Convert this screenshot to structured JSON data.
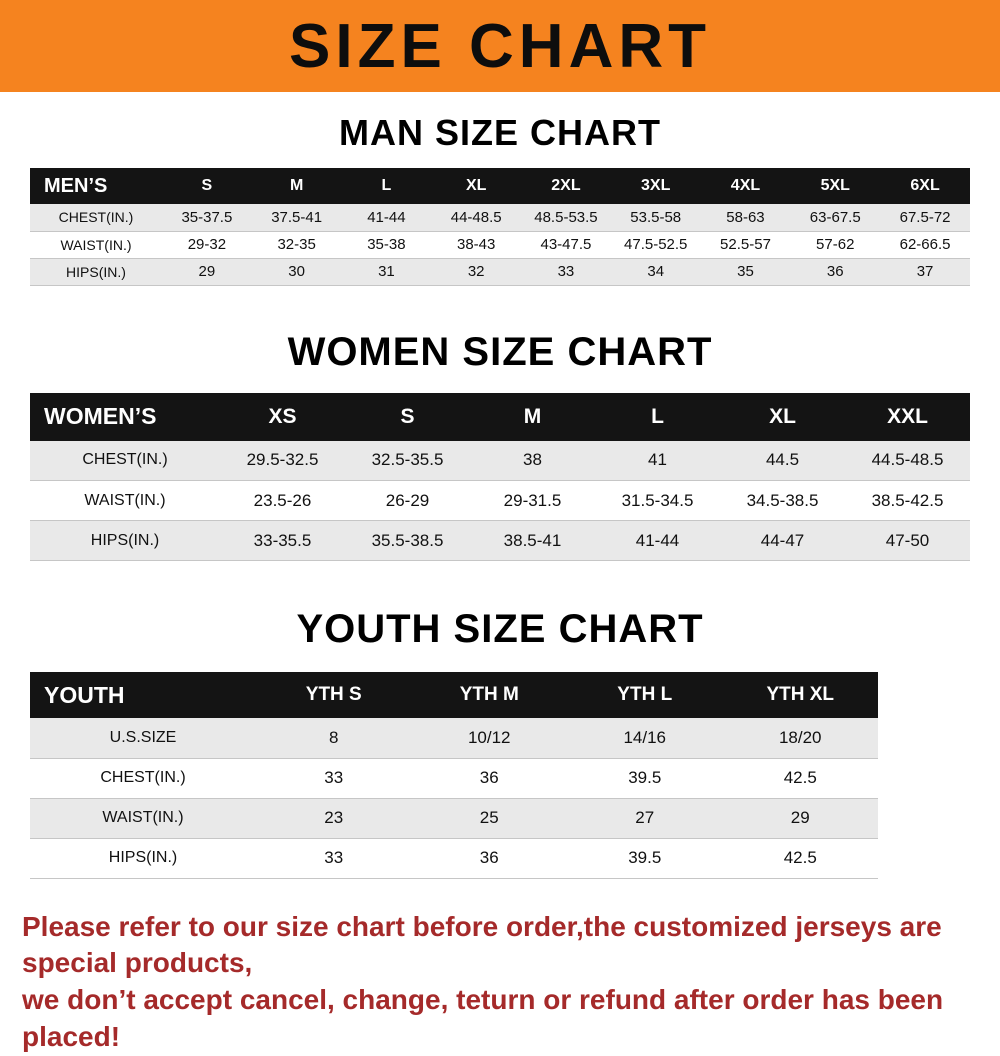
{
  "banner": {
    "title": "SIZE CHART",
    "bg_color": "#F5831F",
    "text_color": "#0d0d0d"
  },
  "sections": [
    {
      "heading": "MAN SIZE CHART"
    },
    {
      "heading": "WOMEN SIZE CHART"
    },
    {
      "heading": "YOUTH SIZE CHART"
    }
  ],
  "tables": {
    "men": {
      "header": [
        "MEN’S",
        "S",
        "M",
        "L",
        "XL",
        "2XL",
        "3XL",
        "4XL",
        "5XL",
        "6XL"
      ],
      "rows": [
        [
          "CHEST(IN.)",
          "35-37.5",
          "37.5-41",
          "41-44",
          "44-48.5",
          "48.5-53.5",
          "53.5-58",
          "58-63",
          "63-67.5",
          "67.5-72"
        ],
        [
          "WAIST(IN.)",
          "29-32",
          "32-35",
          "35-38",
          "38-43",
          "43-47.5",
          "47.5-52.5",
          "52.5-57",
          "57-62",
          "62-66.5"
        ],
        [
          "HIPS(IN.)",
          "29",
          "30",
          "31",
          "32",
          "33",
          "34",
          "35",
          "36",
          "37"
        ]
      ]
    },
    "women": {
      "header": [
        "WOMEN’S",
        "XS",
        "S",
        "M",
        "L",
        "XL",
        "XXL"
      ],
      "rows": [
        [
          "CHEST(IN.)",
          "29.5-32.5",
          "32.5-35.5",
          "38",
          "41",
          "44.5",
          "44.5-48.5"
        ],
        [
          "WAIST(IN.)",
          "23.5-26",
          "26-29",
          "29-31.5",
          "31.5-34.5",
          "34.5-38.5",
          "38.5-42.5"
        ],
        [
          "HIPS(IN.)",
          "33-35.5",
          "35.5-38.5",
          "38.5-41",
          "41-44",
          "44-47",
          "47-50"
        ]
      ]
    },
    "youth": {
      "header": [
        "YOUTH",
        "YTH S",
        "YTH M",
        "YTH L",
        "YTH XL"
      ],
      "rows": [
        [
          "U.S.SIZE",
          "8",
          "10/12",
          "14/16",
          "18/20"
        ],
        [
          "CHEST(IN.)",
          "33",
          "36",
          "39.5",
          "42.5"
        ],
        [
          "WAIST(IN.)",
          "23",
          "25",
          "27",
          "29"
        ],
        [
          "HIPS(IN.)",
          "33",
          "36",
          "39.5",
          "42.5"
        ]
      ]
    }
  },
  "footer": {
    "line1": "Please refer to our size chart before order,the customized jerseys are special products,",
    "line2": "we don’t accept cancel, change, teturn or refund after order has been placed!",
    "color": "#A52A2A"
  }
}
